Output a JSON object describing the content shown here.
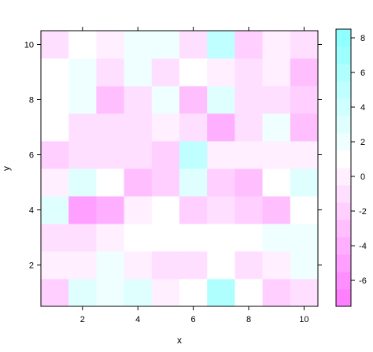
{
  "chart_data": {
    "type": "heatmap",
    "title": "",
    "xlabel": "x",
    "ylabel": "y",
    "xlim": [
      0.5,
      10.5
    ],
    "ylim": [
      0.5,
      10.5
    ],
    "x_ticks": [
      2,
      4,
      6,
      8,
      10
    ],
    "y_ticks": [
      2,
      4,
      6,
      8,
      10
    ],
    "x": [
      1,
      2,
      3,
      4,
      5,
      6,
      7,
      8,
      9,
      10
    ],
    "y": [
      1,
      2,
      3,
      4,
      5,
      6,
      7,
      8,
      9,
      10
    ],
    "z_range": [
      -7.5,
      8.5
    ],
    "colorbar_ticks": [
      -6,
      -4,
      -2,
      0,
      2,
      4,
      6,
      8
    ],
    "colorbar_breaks": [
      -7.5,
      -6.5,
      -5.5,
      -4.5,
      -3.5,
      -2.5,
      -1.5,
      -0.5,
      0.5,
      1.5,
      2.5,
      3.5,
      4.5,
      5.5,
      6.5,
      7.5,
      8.5
    ],
    "colorbar_colors": [
      "#FF80FF",
      "#FF8FFF",
      "#FF9FFF",
      "#FFAFFF",
      "#FFBFFF",
      "#FFCFFF",
      "#FFDFFF",
      "#FFEFFF",
      "#FFFFFF",
      "#EFFFFF",
      "#DFFFFF",
      "#CFFFFF",
      "#BFFFFF",
      "#AFFFFF",
      "#9FFFFF",
      "#8FFFFF"
    ],
    "values": [
      [
        -2,
        3,
        2,
        3,
        0,
        1,
        6,
        1,
        -2,
        -1
      ],
      [
        0,
        0,
        2,
        0,
        -1,
        -1,
        1,
        -1,
        0,
        2
      ],
      [
        -1,
        -1,
        0,
        1,
        1,
        1,
        1,
        1,
        2,
        2
      ],
      [
        3,
        -5,
        -4,
        0,
        1,
        -2,
        -1,
        -2,
        -3,
        1
      ],
      [
        0,
        3,
        1,
        -3,
        -2,
        3,
        -2,
        -3,
        1,
        3
      ],
      [
        -2,
        -1,
        -1,
        -1,
        -2,
        5,
        0,
        0,
        0,
        0
      ],
      [
        1,
        -1,
        -1,
        -1,
        0,
        -1,
        -4,
        -1,
        2,
        -3
      ],
      [
        1,
        2,
        -3,
        -1,
        2,
        -3,
        3,
        -1,
        -1,
        -2
      ],
      [
        1,
        2,
        -1,
        2,
        -1,
        1,
        0,
        -1,
        0,
        -3
      ],
      [
        -1,
        1,
        0,
        2,
        2,
        -1,
        5,
        -2,
        0,
        -1
      ]
    ]
  }
}
